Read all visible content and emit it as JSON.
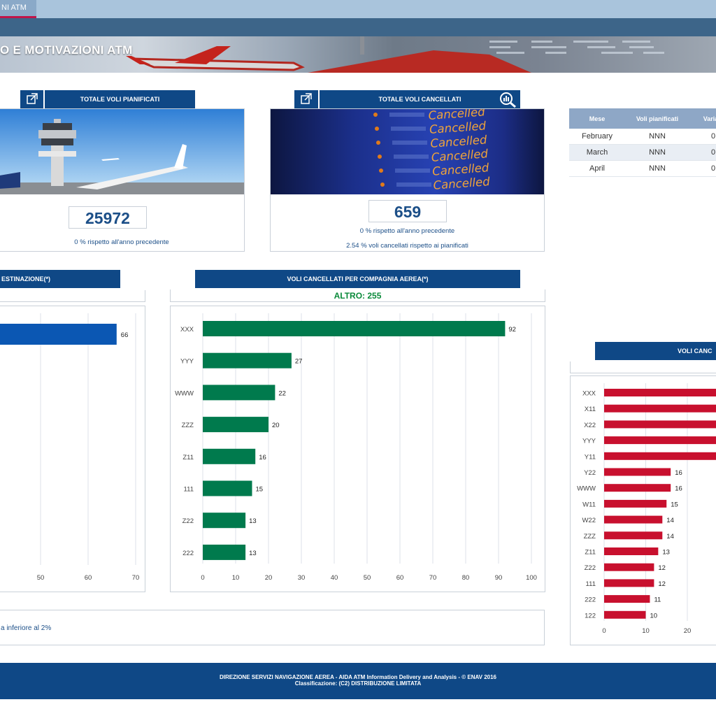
{
  "topbar": {
    "tab_label": "NI ATM"
  },
  "hero": {
    "title": "O E MOTIVAZIONI ATM"
  },
  "kpi_planned": {
    "header": "TOTALE VOLI PIANIFICATI",
    "value": "25972",
    "note": "0 % rispetto all'anno precedente",
    "icon": "external-link-icon"
  },
  "kpi_cancelled": {
    "header": "TOTALE VOLI CANCELLATI",
    "value": "659",
    "note1": "0 % rispetto all'anno precedente",
    "note2": "2.54 % voli cancellati rispetto ai pianificati",
    "icon": "external-link-icon",
    "search_icon": "analytics-search-icon",
    "board_text": [
      "Cancelled",
      "Cancelled",
      "Cancelled",
      "Cancelled",
      "Cancelled",
      "Cancelled"
    ]
  },
  "months_table": {
    "headers": [
      "Mese",
      "Voli pianificati",
      "Variazi"
    ],
    "rows": [
      [
        "February",
        "NNN",
        "0"
      ],
      [
        "March",
        "NNN",
        "0"
      ],
      [
        "April",
        "NNN",
        "0"
      ]
    ]
  },
  "chart_left": {
    "header": "ESTINAZIONE(*)",
    "note": "a inferiore al 2%"
  },
  "chart_mid": {
    "header": "VOLI CANCELLATI PER COMPAGNIA AEREA(*)",
    "altro_label": "ALTRO:",
    "altro_value": "255"
  },
  "chart_right": {
    "header": "VOLI CANC"
  },
  "footer": {
    "line1": "DIREZIONE SERVIZI NAVIGAZIONE AEREA - AIDA ATM Information Delivery and Analysis - © ENAV 2016",
    "line2": "Classificazione: (C2) DISTRIBUZIONE LIMITATA"
  },
  "chart_data": [
    {
      "type": "bar",
      "orientation": "horizontal",
      "categories": [
        ""
      ],
      "values": [
        66
      ],
      "xlim": [
        0,
        70
      ],
      "xticks": [
        50,
        60,
        70
      ],
      "color": "#0b57b3"
    },
    {
      "type": "bar",
      "orientation": "horizontal",
      "categories": [
        "XXX",
        "YYY",
        "WWW",
        "ZZZ",
        "Z11",
        "111",
        "Z22",
        "222"
      ],
      "values": [
        92,
        27,
        22,
        20,
        16,
        15,
        13,
        13
      ],
      "xlim": [
        0,
        100
      ],
      "xticks": [
        0,
        10,
        20,
        30,
        40,
        50,
        60,
        70,
        80,
        90,
        100
      ],
      "color": "#007a4d"
    },
    {
      "type": "bar",
      "orientation": "horizontal",
      "categories": [
        "XXX",
        "X11",
        "X22",
        "YYY",
        "Y11",
        "Y22",
        "WWW",
        "W11",
        "W22",
        "ZZZ",
        "Z11",
        "Z22",
        "111",
        "222",
        "122"
      ],
      "values": [
        null,
        null,
        null,
        null,
        null,
        16,
        16,
        15,
        14,
        14,
        13,
        12,
        12,
        11,
        10
      ],
      "xticks": [
        0,
        10,
        20
      ],
      "color": "#c8102e"
    }
  ]
}
